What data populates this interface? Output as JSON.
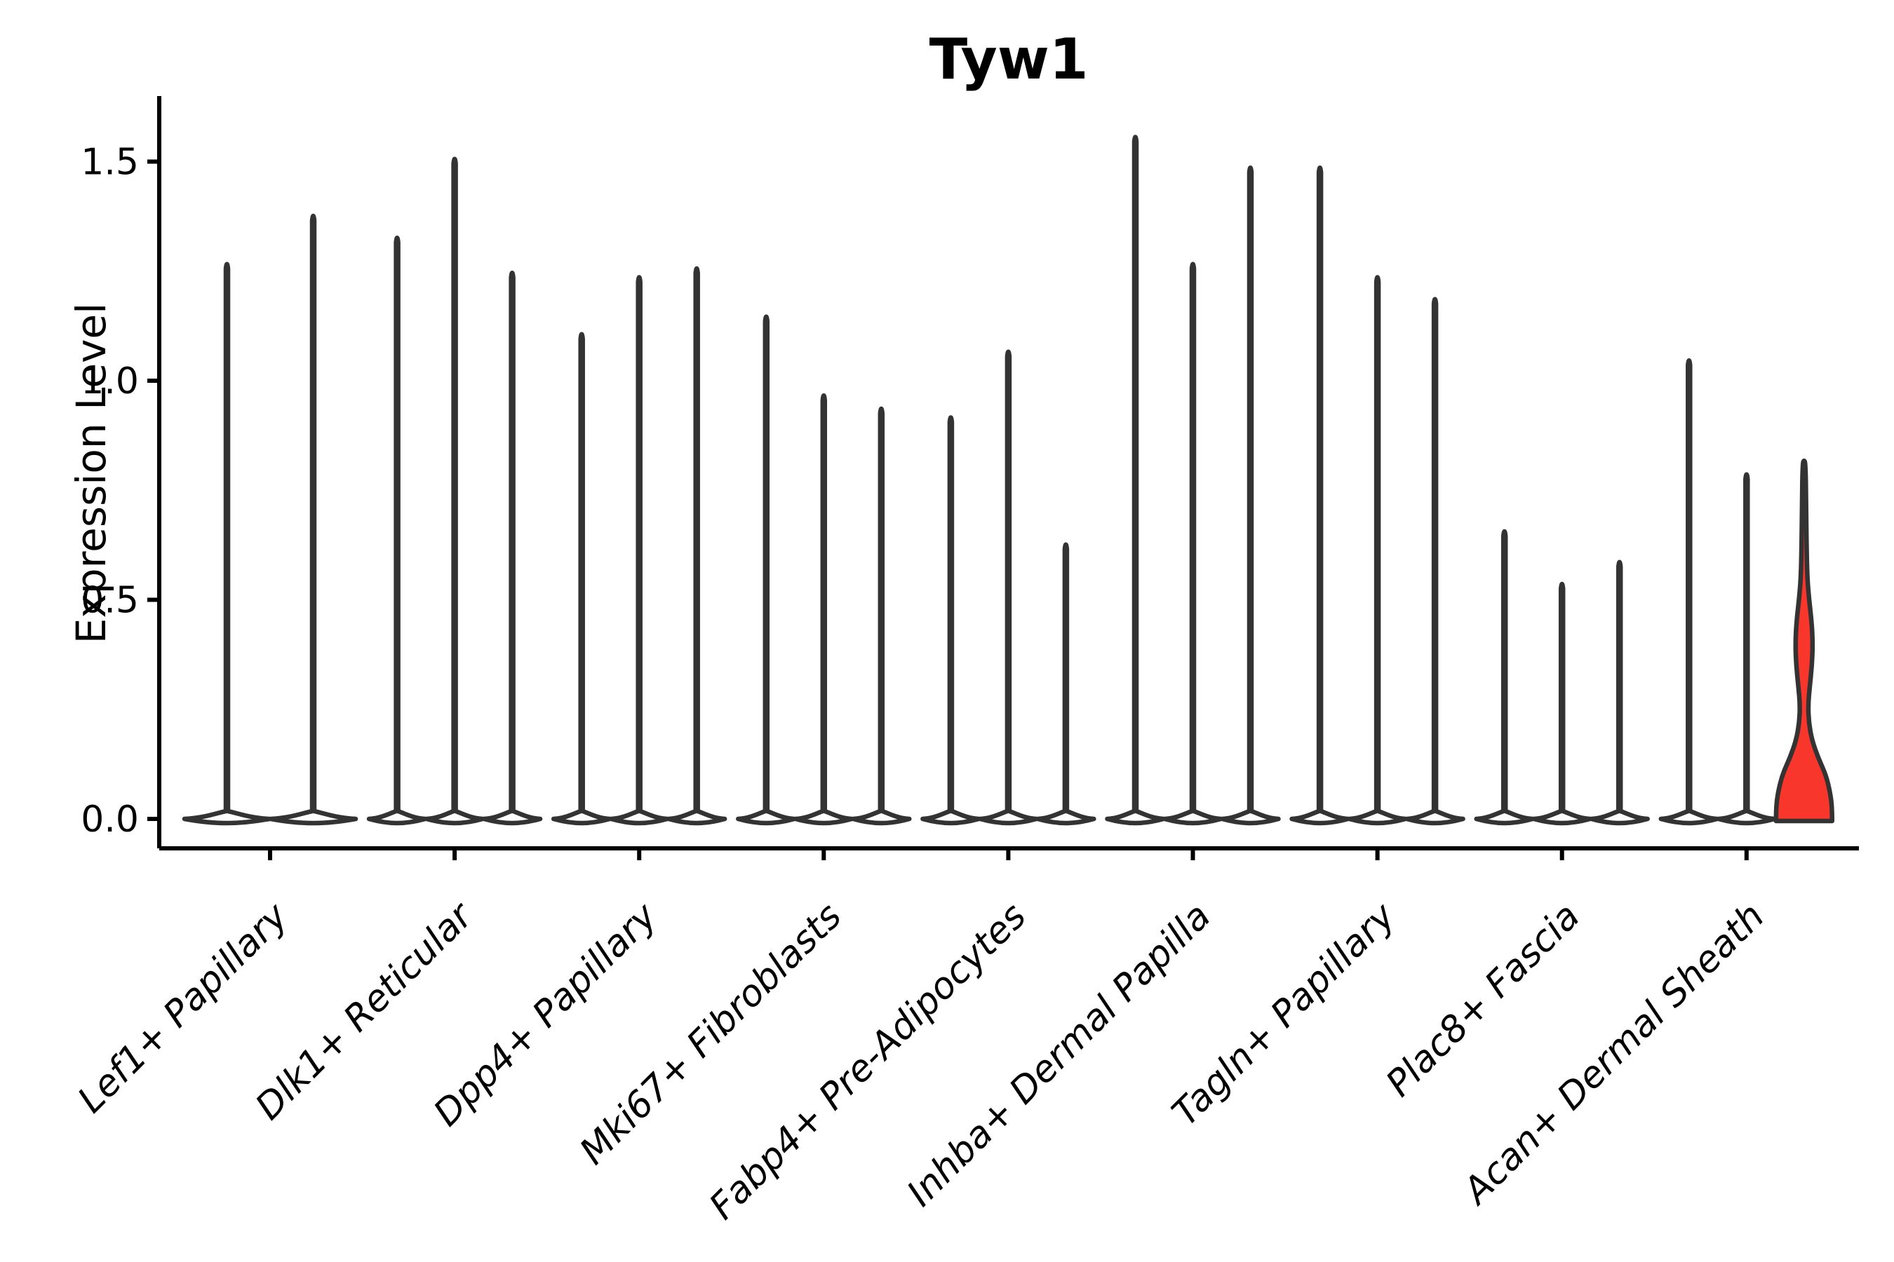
{
  "figure": {
    "background": "#ffffff"
  },
  "chart_data": {
    "type": "violin",
    "title": "Tyw1",
    "ylabel": "Expression Level",
    "xlabel": "",
    "yticks": [
      0.0,
      0.5,
      1.0,
      1.5
    ],
    "ylim": [
      -0.07,
      1.65
    ],
    "grid": false,
    "legend": false,
    "x_tick_rotation_deg": 45,
    "colors": {
      "outline": "#333333",
      "axis": "#000000",
      "plain_fill": "#ffffff",
      "highlight_fill": "#f8362b",
      "text": "#000000"
    },
    "categories": [
      "Lef1+ Papillary",
      "Dlk1+ Reticular",
      "Dpp4+ Papillary",
      "Mki67+ Fibroblasts",
      "Fabp4+ Pre-Adipocytes",
      "Inhba+ Dermal Papilla",
      "Tagln+ Papillary",
      "Plac8+ Fascia",
      "Acan+ Dermal Sheath"
    ],
    "groups": [
      {
        "category": "Lef1+ Papillary",
        "violins": [
          {
            "max": 1.27
          },
          {
            "max": 1.38
          }
        ]
      },
      {
        "category": "Dlk1+ Reticular",
        "violins": [
          {
            "max": 1.33
          },
          {
            "max": 1.51
          },
          {
            "max": 1.25
          }
        ]
      },
      {
        "category": "Dpp4+ Papillary",
        "violins": [
          {
            "max": 1.11
          },
          {
            "max": 1.24
          },
          {
            "max": 1.26
          }
        ]
      },
      {
        "category": "Mki67+ Fibroblasts",
        "violins": [
          {
            "max": 1.15
          },
          {
            "max": 0.97
          },
          {
            "max": 0.94
          }
        ]
      },
      {
        "category": "Fabp4+ Pre-Adipocytes",
        "violins": [
          {
            "max": 0.92
          },
          {
            "max": 1.07
          },
          {
            "max": 0.63
          }
        ]
      },
      {
        "category": "Inhba+ Dermal Papilla",
        "violins": [
          {
            "max": 1.56
          },
          {
            "max": 1.27
          },
          {
            "max": 1.49
          }
        ]
      },
      {
        "category": "Tagln+ Papillary",
        "violins": [
          {
            "max": 1.49
          },
          {
            "max": 1.24
          },
          {
            "max": 1.19
          }
        ]
      },
      {
        "category": "Plac8+ Fascia",
        "violins": [
          {
            "max": 0.66
          },
          {
            "max": 0.54
          },
          {
            "max": 0.59
          }
        ]
      },
      {
        "category": "Acan+ Dermal Sheath",
        "violins": [
          {
            "max": 1.05
          },
          {
            "max": 0.79
          },
          {
            "max": 0.81,
            "filled": true,
            "profile": [
              [
                0.0,
                1.0
              ],
              [
                0.03,
                0.99
              ],
              [
                0.06,
                0.93
              ],
              [
                0.1,
                0.78
              ],
              [
                0.14,
                0.5
              ],
              [
                0.18,
                0.28
              ],
              [
                0.22,
                0.17
              ],
              [
                0.26,
                0.145
              ],
              [
                0.3,
                0.2
              ],
              [
                0.35,
                0.28
              ],
              [
                0.4,
                0.31
              ],
              [
                0.45,
                0.27
              ],
              [
                0.5,
                0.18
              ],
              [
                0.55,
                0.115
              ],
              [
                0.62,
                0.09
              ],
              [
                0.7,
                0.075
              ],
              [
                0.81,
                0.055
              ]
            ]
          }
        ]
      }
    ]
  }
}
